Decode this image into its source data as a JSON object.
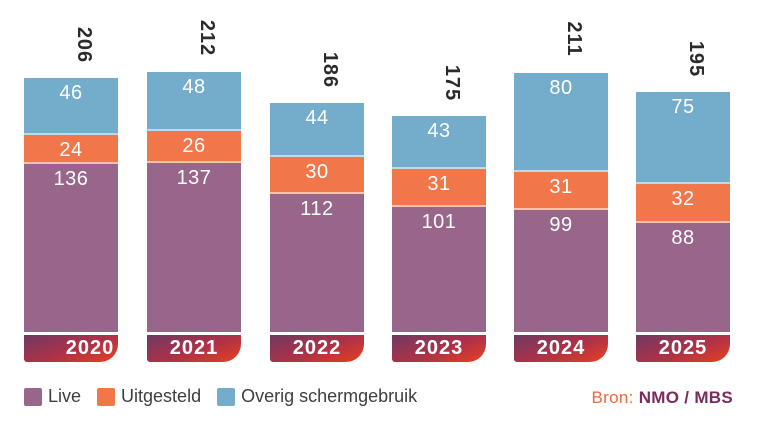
{
  "chart_data": {
    "type": "bar",
    "stacked": true,
    "title": "",
    "categories": [
      "2020",
      "2021",
      "2022",
      "2023",
      "2024",
      "2025"
    ],
    "series": [
      {
        "name": "Live",
        "color": "#98658B",
        "values": [
          136,
          137,
          112,
          101,
          99,
          88
        ]
      },
      {
        "name": "Uitgesteld",
        "color": "#F1764A",
        "values": [
          24,
          26,
          30,
          31,
          31,
          32
        ]
      },
      {
        "name": "Overig schermgebruik",
        "color": "#74ACCB",
        "values": [
          46,
          48,
          44,
          43,
          80,
          75
        ]
      }
    ],
    "totals": [
      "206",
      "212",
      "186",
      "175",
      "211",
      "195"
    ],
    "value_label_color": "#FFFFFF",
    "total_label_color": "#2B2B2B",
    "total_labels_rotated_90deg": true,
    "year_band": {
      "gradient": [
        "#6E3A63",
        "#B03147",
        "#E8401F"
      ],
      "text_color": "#FFFFFF"
    },
    "grid": false,
    "axes": "hidden",
    "legend_position": "bottom-left"
  },
  "legend": {
    "items": [
      {
        "label": "Live",
        "color": "#98658B"
      },
      {
        "label": "Uitgesteld",
        "color": "#F1764A"
      },
      {
        "label": "Overig schermgebruik",
        "color": "#74ACCB"
      }
    ]
  },
  "source": {
    "prefix": "Bron:",
    "name": "NMO / MBS",
    "prefix_color": "#EB6A3E",
    "name_color": "#7B2B5E"
  }
}
